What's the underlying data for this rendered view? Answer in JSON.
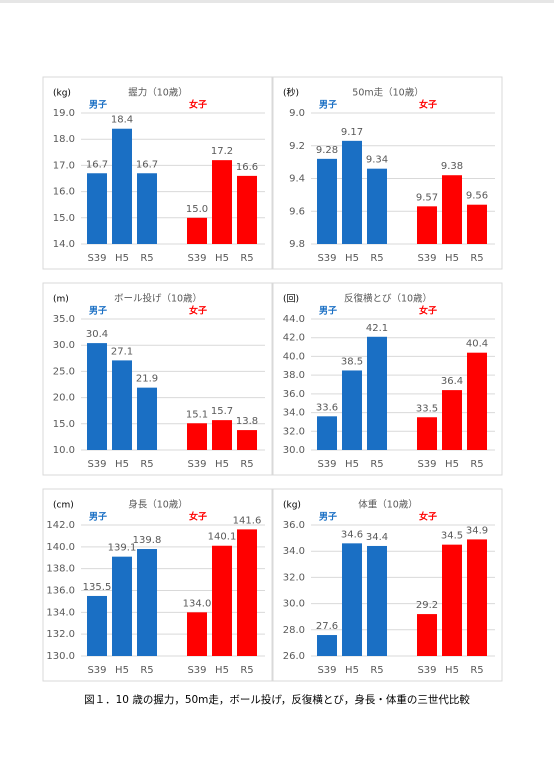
{
  "chart_data": [
    {
      "type": "bar",
      "title": "握力（10歳）",
      "unit": "(kg)",
      "categories": [
        "S39",
        "H5",
        "R5",
        "S39",
        "H5",
        "R5"
      ],
      "series": [
        {
          "name": "男子",
          "color": "#1a6fc4",
          "values": [
            16.7,
            18.4,
            16.7,
            null,
            null,
            null
          ],
          "value_labels": [
            "16.7",
            "18.4",
            "16.7",
            null,
            null,
            null
          ]
        },
        {
          "name": "女子",
          "color": "#ff0000",
          "values": [
            null,
            null,
            null,
            15.0,
            17.2,
            16.6
          ],
          "value_labels": [
            null,
            null,
            null,
            "15.0",
            "17.2",
            "16.6"
          ]
        }
      ],
      "ylim": [
        14,
        19
      ],
      "yticks": [
        {
          "value": 14,
          "label": "14.0"
        },
        {
          "value": 15,
          "label": "15.0"
        },
        {
          "value": 16,
          "label": "16.0"
        },
        {
          "value": 17,
          "label": "17.0"
        },
        {
          "value": 18,
          "label": "18.0"
        },
        {
          "value": 19,
          "label": "19.0"
        }
      ],
      "grid": true
    },
    {
      "type": "bar",
      "title": "50m走（10歳）",
      "unit": "(秒)",
      "categories": [
        "S39",
        "H5",
        "R5",
        "S39",
        "H5",
        "R5"
      ],
      "series": [
        {
          "name": "男子",
          "color": "#1a6fc4",
          "values": [
            9.28,
            9.17,
            9.34,
            null,
            null,
            null
          ],
          "value_labels": [
            "9.28",
            "9.17",
            "9.34",
            null,
            null,
            null
          ]
        },
        {
          "name": "女子",
          "color": "#ff0000",
          "values": [
            null,
            null,
            null,
            9.57,
            9.38,
            9.56
          ],
          "value_labels": [
            null,
            null,
            null,
            "9.57",
            "9.38",
            "9.56"
          ]
        }
      ],
      "ylim": [
        9.8,
        9.0
      ],
      "y_inverted": true,
      "yticks": [
        {
          "value": 9.0,
          "label": "9.0"
        },
        {
          "value": 9.2,
          "label": "9.2"
        },
        {
          "value": 9.4,
          "label": "9.4"
        },
        {
          "value": 9.6,
          "label": "9.6"
        },
        {
          "value": 9.8,
          "label": "9.8"
        }
      ],
      "grid": true
    },
    {
      "type": "bar",
      "title": "ボール投げ（10歳）",
      "unit": "(m)",
      "categories": [
        "S39",
        "H5",
        "R5",
        "S39",
        "H5",
        "R5"
      ],
      "series": [
        {
          "name": "男子",
          "color": "#1a6fc4",
          "values": [
            30.4,
            27.1,
            21.9,
            null,
            null,
            null
          ],
          "value_labels": [
            "30.4",
            "27.1",
            "21.9",
            null,
            null,
            null
          ]
        },
        {
          "name": "女子",
          "color": "#ff0000",
          "values": [
            null,
            null,
            null,
            15.1,
            15.7,
            13.8
          ],
          "value_labels": [
            null,
            null,
            null,
            "15.1",
            "15.7",
            "13.8"
          ]
        }
      ],
      "ylim": [
        10,
        35
      ],
      "yticks": [
        {
          "value": 10,
          "label": "10.0"
        },
        {
          "value": 15,
          "label": "15.0"
        },
        {
          "value": 20,
          "label": "20.0"
        },
        {
          "value": 25,
          "label": "25.0"
        },
        {
          "value": 30,
          "label": "30.0"
        },
        {
          "value": 35,
          "label": "35.0"
        }
      ],
      "grid": true
    },
    {
      "type": "bar",
      "title": "反復横とび（10歳）",
      "unit": "(回)",
      "categories": [
        "S39",
        "H5",
        "R5",
        "S39",
        "H5",
        "R5"
      ],
      "series": [
        {
          "name": "男子",
          "color": "#1a6fc4",
          "values": [
            33.6,
            38.5,
            42.1,
            null,
            null,
            null
          ],
          "value_labels": [
            "33.6",
            "38.5",
            "42.1",
            null,
            null,
            null
          ]
        },
        {
          "name": "女子",
          "color": "#ff0000",
          "values": [
            null,
            null,
            null,
            33.5,
            36.4,
            40.4
          ],
          "value_labels": [
            null,
            null,
            null,
            "33.5",
            "36.4",
            "40.4"
          ]
        }
      ],
      "ylim": [
        30,
        44
      ],
      "yticks": [
        {
          "value": 30,
          "label": "30.0"
        },
        {
          "value": 32,
          "label": "32.0"
        },
        {
          "value": 34,
          "label": "34.0"
        },
        {
          "value": 36,
          "label": "36.0"
        },
        {
          "value": 38,
          "label": "38.0"
        },
        {
          "value": 40,
          "label": "40.0"
        },
        {
          "value": 42,
          "label": "42.0"
        },
        {
          "value": 44,
          "label": "44.0"
        }
      ],
      "grid": true
    },
    {
      "type": "bar",
      "title": "身長（10歳）",
      "unit": "(cm)",
      "categories": [
        "S39",
        "H5",
        "R5",
        "S39",
        "H5",
        "R5"
      ],
      "series": [
        {
          "name": "男子",
          "color": "#1a6fc4",
          "values": [
            135.5,
            139.1,
            139.8,
            null,
            null,
            null
          ],
          "value_labels": [
            "135.5",
            "139.1",
            "139.8",
            null,
            null,
            null
          ]
        },
        {
          "name": "女子",
          "color": "#ff0000",
          "values": [
            null,
            null,
            null,
            134.0,
            140.1,
            141.6
          ],
          "value_labels": [
            null,
            null,
            null,
            "134.0",
            "140.1",
            "141.6"
          ]
        }
      ],
      "ylim": [
        130,
        142
      ],
      "yticks": [
        {
          "value": 130,
          "label": "130.0"
        },
        {
          "value": 132,
          "label": "132.0"
        },
        {
          "value": 134,
          "label": "134.0"
        },
        {
          "value": 136,
          "label": "136.0"
        },
        {
          "value": 138,
          "label": "138.0"
        },
        {
          "value": 140,
          "label": "140.0"
        },
        {
          "value": 142,
          "label": "142.0"
        }
      ],
      "grid": true
    },
    {
      "type": "bar",
      "title": "体重（10歳）",
      "unit": "(kg)",
      "categories": [
        "S39",
        "H5",
        "R5",
        "S39",
        "H5",
        "R5"
      ],
      "series": [
        {
          "name": "男子",
          "color": "#1a6fc4",
          "values": [
            27.6,
            34.6,
            34.4,
            null,
            null,
            null
          ],
          "value_labels": [
            "27.6",
            "34.6",
            "34.4",
            null,
            null,
            null
          ]
        },
        {
          "name": "女子",
          "color": "#ff0000",
          "values": [
            null,
            null,
            null,
            29.2,
            34.5,
            34.9
          ],
          "value_labels": [
            null,
            null,
            null,
            "29.2",
            "34.5",
            "34.9"
          ]
        }
      ],
      "ylim": [
        26,
        36
      ],
      "yticks": [
        {
          "value": 26,
          "label": "26.0"
        },
        {
          "value": 28,
          "label": "28.0"
        },
        {
          "value": 30,
          "label": "30.0"
        },
        {
          "value": 32,
          "label": "32.0"
        },
        {
          "value": 34,
          "label": "34.0"
        },
        {
          "value": 36,
          "label": "36.0"
        }
      ],
      "grid": true
    }
  ],
  "caption": "図１．10 歳の握力，50m走，ボール投げ，反復横とび，身長・体重の三世代比較"
}
